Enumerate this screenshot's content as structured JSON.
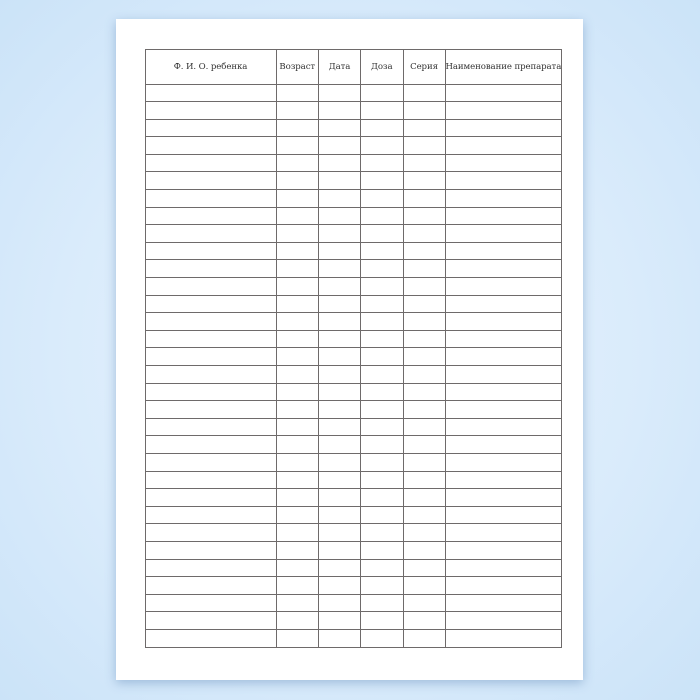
{
  "table": {
    "headers": [
      "Ф. И. О. ребенка",
      "Возраст",
      "Дата",
      "Доза",
      "Серия",
      "Наименование препарата"
    ],
    "row_count": 32
  }
}
